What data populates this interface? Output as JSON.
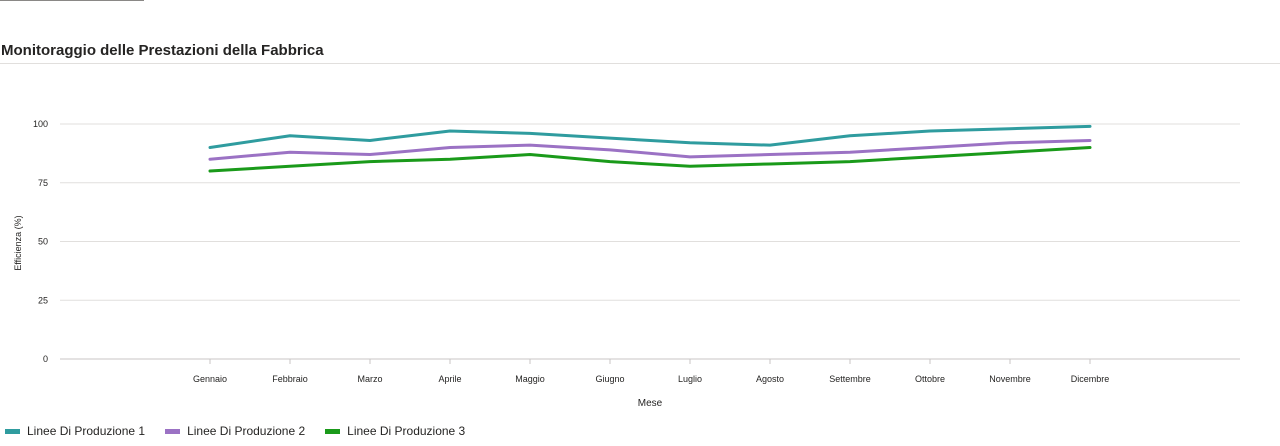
{
  "chart_data": {
    "type": "line",
    "title": "Monitoraggio delle Prestazioni della Fabbrica",
    "xlabel": "Mese",
    "ylabel": "Efficienza (%)",
    "categories": [
      "Gennaio",
      "Febbraio",
      "Marzo",
      "Aprile",
      "Maggio",
      "Giugno",
      "Luglio",
      "Agosto",
      "Settembre",
      "Ottobre",
      "Novembre",
      "Dicembre"
    ],
    "ylim": [
      0,
      100
    ],
    "yticks": [
      0,
      25,
      50,
      75,
      100
    ],
    "grid": true,
    "legend_position": "bottom-left",
    "series": [
      {
        "name": "Linee Di Produzione 1",
        "color": "#2f9c9f",
        "values": [
          90,
          95,
          93,
          97,
          96,
          94,
          92,
          91,
          95,
          97,
          98,
          99
        ]
      },
      {
        "name": "Linee Di Produzione 2",
        "color": "#9b72c4",
        "values": [
          85,
          88,
          87,
          90,
          91,
          89,
          86,
          87,
          88,
          90,
          92,
          93
        ]
      },
      {
        "name": "Linee Di Produzione 3",
        "color": "#1a9a1a",
        "values": [
          80,
          82,
          84,
          85,
          87,
          84,
          82,
          83,
          84,
          86,
          88,
          90
        ]
      }
    ]
  }
}
